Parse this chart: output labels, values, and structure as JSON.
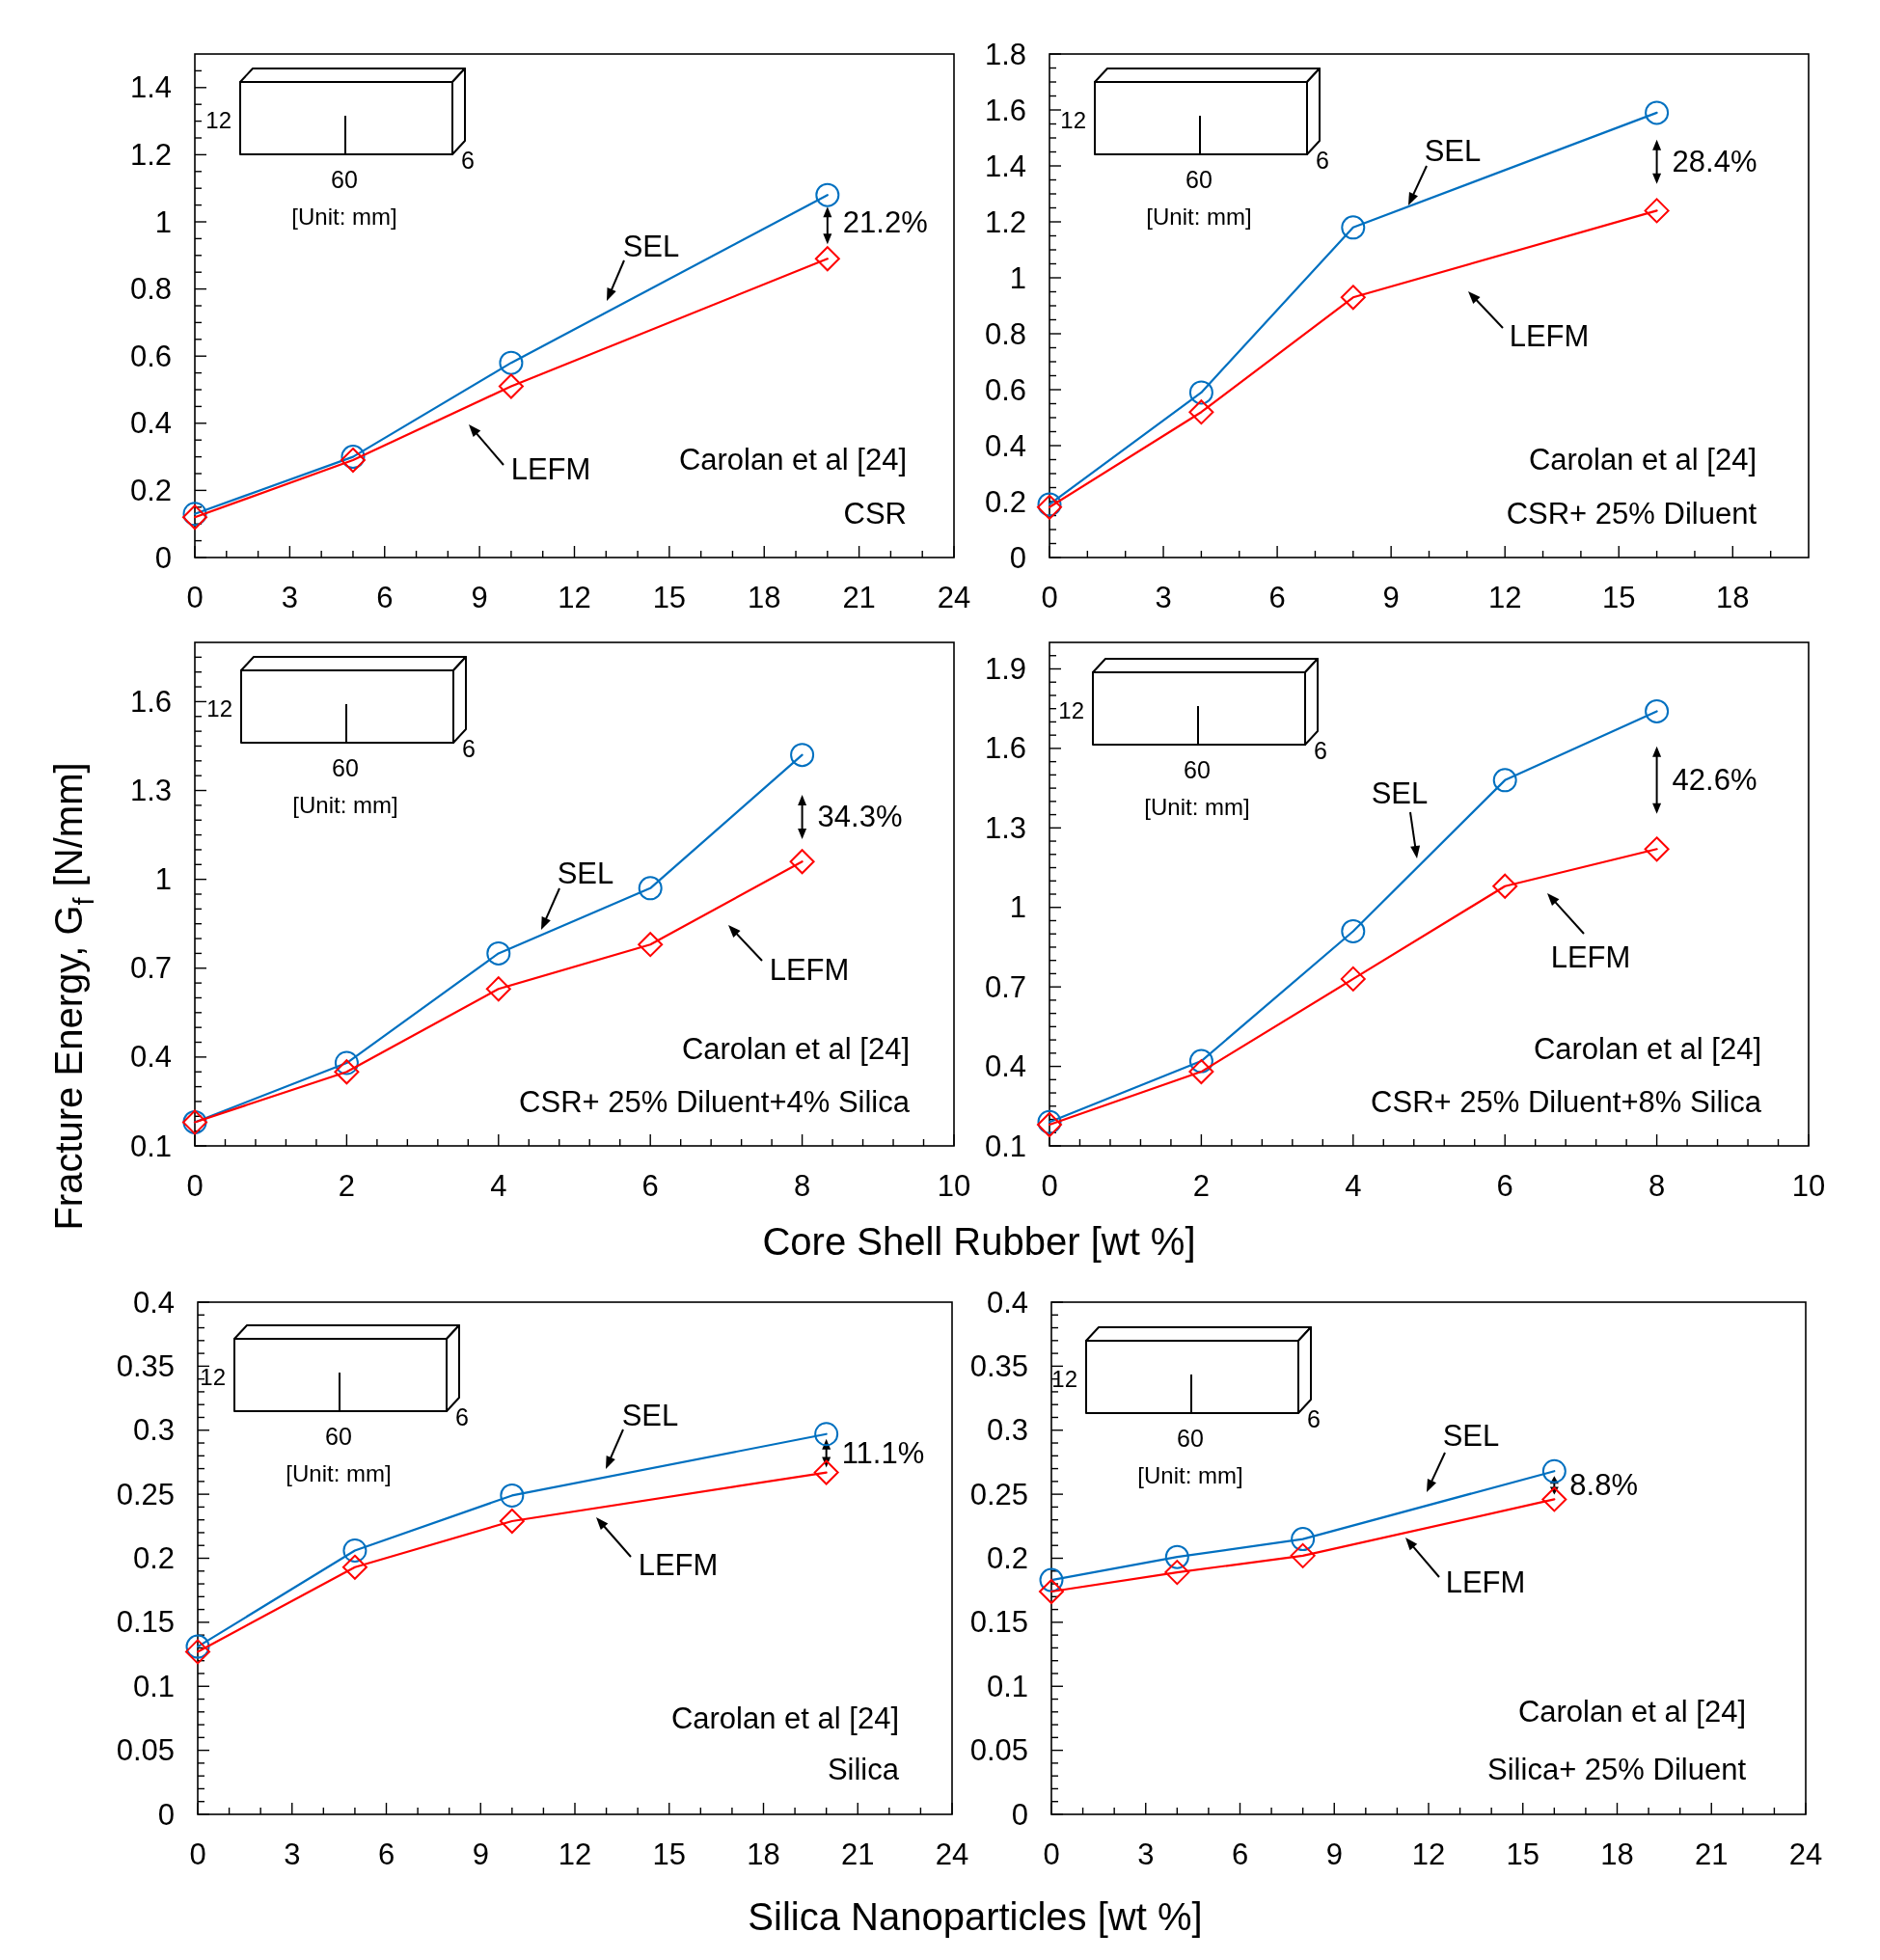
{
  "chart_data": [
    {
      "type": "line",
      "x": [
        0,
        5,
        10,
        20
      ],
      "xlim": [
        0,
        24
      ],
      "ylim": [
        0,
        1.5
      ],
      "xticks": [
        0,
        {
          "value": 1,
          "label": null
        },
        {
          "value": 2,
          "label": null
        },
        3,
        {
          "value": 4,
          "label": null
        },
        {
          "value": 5,
          "label": null
        },
        6,
        {
          "value": 7,
          "label": null
        },
        {
          "value": 8,
          "label": null
        },
        9,
        {
          "value": 10,
          "label": null
        },
        {
          "value": 11,
          "label": null
        },
        12,
        {
          "value": 13,
          "label": null
        },
        {
          "value": 14,
          "label": null
        },
        15,
        {
          "value": 16,
          "label": null
        },
        {
          "value": 17,
          "label": null
        },
        18,
        {
          "value": 19,
          "label": null
        },
        {
          "value": 20,
          "label": null
        },
        21,
        {
          "value": 22,
          "label": null
        },
        {
          "value": 23,
          "label": null
        },
        24
      ],
      "yticks": [
        0,
        {
          "value": 0.05,
          "label": null
        },
        {
          "value": 0.1,
          "label": null
        },
        {
          "value": 0.15,
          "label": null
        },
        0.2,
        {
          "value": 0.25,
          "label": null
        },
        {
          "value": 0.3,
          "label": null
        },
        {
          "value": 0.35,
          "label": null
        },
        0.4,
        {
          "value": 0.45,
          "label": null
        },
        {
          "value": 0.5,
          "label": null
        },
        {
          "value": 0.55,
          "label": null
        },
        0.6,
        {
          "value": 0.65,
          "label": null
        },
        {
          "value": 0.7,
          "label": null
        },
        {
          "value": 0.75,
          "label": null
        },
        0.8,
        {
          "value": 0.85,
          "label": null
        },
        {
          "value": 0.9,
          "label": null
        },
        {
          "value": 0.95,
          "label": null
        },
        1,
        {
          "value": 1.05,
          "label": null
        },
        {
          "value": 1.1,
          "label": null
        },
        {
          "value": 1.15,
          "label": null
        },
        1.2,
        {
          "value": 1.25,
          "label": null
        },
        {
          "value": 1.3,
          "label": null
        },
        {
          "value": 1.35,
          "label": null
        },
        1.4,
        {
          "value": 1.45,
          "label": null
        }
      ],
      "series": [
        {
          "name": "SEL",
          "color": "#0070c0",
          "marker": "circle",
          "values": [
            0.13,
            0.3,
            0.58,
            1.08
          ]
        },
        {
          "name": "LEFM",
          "color": "#ff0000",
          "marker": "diamond",
          "values": [
            0.12,
            0.29,
            0.51,
            0.89
          ]
        }
      ],
      "annotations": [
        "Carolan et al [24]",
        "CSR",
        "21.2%",
        "12",
        "60",
        "6",
        "[Unit: mm]"
      ]
    },
    {
      "type": "line",
      "x": [
        0,
        4,
        8,
        16
      ],
      "xlim": [
        0,
        20
      ],
      "ylim": [
        0,
        1.8
      ],
      "xticks": [
        0,
        {
          "value": 1,
          "label": null
        },
        {
          "value": 2,
          "label": null
        },
        3,
        {
          "value": 4,
          "label": null
        },
        {
          "value": 5,
          "label": null
        },
        6,
        {
          "value": 7,
          "label": null
        },
        {
          "value": 8,
          "label": null
        },
        9,
        {
          "value": 10,
          "label": null
        },
        {
          "value": 11,
          "label": null
        },
        12,
        {
          "value": 13,
          "label": null
        },
        {
          "value": 14,
          "label": null
        },
        15,
        {
          "value": 16,
          "label": null
        },
        {
          "value": 17,
          "label": null
        },
        18,
        {
          "value": 19,
          "label": null
        }
      ],
      "yticks": [
        0,
        {
          "value": 0.05,
          "label": null
        },
        {
          "value": 0.1,
          "label": null
        },
        {
          "value": 0.15,
          "label": null
        },
        0.2,
        {
          "value": 0.25,
          "label": null
        },
        {
          "value": 0.3,
          "label": null
        },
        {
          "value": 0.35,
          "label": null
        },
        0.4,
        {
          "value": 0.45,
          "label": null
        },
        {
          "value": 0.5,
          "label": null
        },
        {
          "value": 0.55,
          "label": null
        },
        0.6,
        {
          "value": 0.65,
          "label": null
        },
        {
          "value": 0.7,
          "label": null
        },
        {
          "value": 0.75,
          "label": null
        },
        0.8,
        {
          "value": 0.85,
          "label": null
        },
        {
          "value": 0.9,
          "label": null
        },
        {
          "value": 0.95,
          "label": null
        },
        1,
        {
          "value": 1.05,
          "label": null
        },
        {
          "value": 1.1,
          "label": null
        },
        {
          "value": 1.15,
          "label": null
        },
        1.2,
        {
          "value": 1.25,
          "label": null
        },
        {
          "value": 1.3,
          "label": null
        },
        {
          "value": 1.35,
          "label": null
        },
        1.4,
        {
          "value": 1.45,
          "label": null
        },
        {
          "value": 1.5,
          "label": null
        },
        {
          "value": 1.55,
          "label": null
        },
        1.6,
        {
          "value": 1.65,
          "label": null
        },
        {
          "value": 1.7,
          "label": null
        },
        {
          "value": 1.75,
          "label": null
        },
        1.8
      ],
      "series": [
        {
          "name": "SEL",
          "color": "#0070c0",
          "marker": "circle",
          "values": [
            0.19,
            0.59,
            1.18,
            1.59
          ]
        },
        {
          "name": "LEFM",
          "color": "#ff0000",
          "marker": "diamond",
          "values": [
            0.18,
            0.52,
            0.93,
            1.24
          ]
        }
      ],
      "annotations": [
        "Carolan et al [24]",
        "CSR+ 25% Diluent",
        "28.4%",
        "12",
        "60",
        "6",
        "[Unit: mm]"
      ]
    },
    {
      "type": "line",
      "x": [
        0,
        2,
        4,
        6,
        8
      ],
      "xlim": [
        0,
        10
      ],
      "ylim": [
        0.1,
        1.8
      ],
      "xlabel": "Core Shell Rubber [wt %]",
      "ylabel": "Fracture Energy, G$_{f}$ [N/mm]",
      "xticks": [
        0,
        {
          "value": 0.4,
          "label": null
        },
        {
          "value": 0.8,
          "label": null
        },
        {
          "value": 1.2,
          "label": null
        },
        {
          "value": 1.6,
          "label": null
        },
        2,
        {
          "value": 2.4,
          "label": null
        },
        {
          "value": 2.8,
          "label": null
        },
        {
          "value": 3.2,
          "label": null
        },
        {
          "value": 3.6,
          "label": null
        },
        4,
        {
          "value": 4.4,
          "label": null
        },
        {
          "value": 4.8,
          "label": null
        },
        {
          "value": 5.2,
          "label": null
        },
        {
          "value": 5.6,
          "label": null
        },
        6,
        {
          "value": 6.4,
          "label": null
        },
        {
          "value": 6.8,
          "label": null
        },
        {
          "value": 7.2,
          "label": null
        },
        {
          "value": 7.6,
          "label": null
        },
        8,
        {
          "value": 8.4,
          "label": null
        },
        {
          "value": 8.8,
          "label": null
        },
        {
          "value": 9.2,
          "label": null
        },
        {
          "value": 9.6,
          "label": null
        },
        10
      ],
      "yticks": [
        0.1,
        {
          "value": 0.15,
          "label": null
        },
        {
          "value": 0.2,
          "label": null
        },
        {
          "value": 0.25,
          "label": null
        },
        {
          "value": 0.3,
          "label": null
        },
        {
          "value": 0.35,
          "label": null
        },
        0.4,
        {
          "value": 0.45,
          "label": null
        },
        {
          "value": 0.5,
          "label": null
        },
        {
          "value": 0.55,
          "label": null
        },
        {
          "value": 0.6,
          "label": null
        },
        {
          "value": 0.65,
          "label": null
        },
        0.7,
        {
          "value": 0.75,
          "label": null
        },
        {
          "value": 0.8,
          "label": null
        },
        {
          "value": 0.85,
          "label": null
        },
        {
          "value": 0.9,
          "label": null
        },
        {
          "value": 0.95,
          "label": null
        },
        1,
        {
          "value": 1.05,
          "label": null
        },
        {
          "value": 1.1,
          "label": null
        },
        {
          "value": 1.15,
          "label": null
        },
        {
          "value": 1.2,
          "label": null
        },
        {
          "value": 1.25,
          "label": null
        },
        1.3,
        {
          "value": 1.35,
          "label": null
        },
        {
          "value": 1.4,
          "label": null
        },
        {
          "value": 1.45,
          "label": null
        },
        {
          "value": 1.5,
          "label": null
        },
        {
          "value": 1.55,
          "label": null
        },
        1.6,
        {
          "value": 1.65,
          "label": null
        },
        {
          "value": 1.7,
          "label": null
        },
        {
          "value": 1.75,
          "label": null
        }
      ],
      "series": [
        {
          "name": "SEL",
          "color": "#0070c0",
          "marker": "circle",
          "values": [
            0.18,
            0.38,
            0.75,
            0.97,
            1.42
          ]
        },
        {
          "name": "LEFM",
          "color": "#ff0000",
          "marker": "diamond",
          "values": [
            0.18,
            0.35,
            0.63,
            0.78,
            1.06
          ]
        }
      ],
      "annotations": [
        "Carolan et al [24]",
        "CSR+ 25% Diluent+4% Silica",
        "34.3%",
        "12",
        "60",
        "6",
        "[Unit: mm]"
      ]
    },
    {
      "type": "line",
      "x": [
        0,
        2,
        4,
        6,
        8
      ],
      "xlim": [
        0,
        10
      ],
      "ylim": [
        0.1,
        2.0
      ],
      "xticks": [
        0,
        {
          "value": 0.4,
          "label": null
        },
        {
          "value": 0.8,
          "label": null
        },
        {
          "value": 1.2,
          "label": null
        },
        {
          "value": 1.6,
          "label": null
        },
        2,
        {
          "value": 2.4,
          "label": null
        },
        {
          "value": 2.8,
          "label": null
        },
        {
          "value": 3.2,
          "label": null
        },
        {
          "value": 3.6,
          "label": null
        },
        4,
        {
          "value": 4.4,
          "label": null
        },
        {
          "value": 4.8,
          "label": null
        },
        {
          "value": 5.2,
          "label": null
        },
        {
          "value": 5.6,
          "label": null
        },
        6,
        {
          "value": 6.4,
          "label": null
        },
        {
          "value": 6.8,
          "label": null
        },
        {
          "value": 7.2,
          "label": null
        },
        {
          "value": 7.6,
          "label": null
        },
        8,
        {
          "value": 8.4,
          "label": null
        },
        {
          "value": 8.8,
          "label": null
        },
        {
          "value": 9.2,
          "label": null
        },
        {
          "value": 9.6,
          "label": null
        },
        10
      ],
      "yticks": [
        0.1,
        {
          "value": 0.15,
          "label": null
        },
        {
          "value": 0.2,
          "label": null
        },
        {
          "value": 0.25,
          "label": null
        },
        {
          "value": 0.3,
          "label": null
        },
        {
          "value": 0.35,
          "label": null
        },
        0.4,
        {
          "value": 0.45,
          "label": null
        },
        {
          "value": 0.5,
          "label": null
        },
        {
          "value": 0.55,
          "label": null
        },
        {
          "value": 0.6,
          "label": null
        },
        {
          "value": 0.65,
          "label": null
        },
        0.7,
        {
          "value": 0.75,
          "label": null
        },
        {
          "value": 0.8,
          "label": null
        },
        {
          "value": 0.85,
          "label": null
        },
        {
          "value": 0.9,
          "label": null
        },
        {
          "value": 0.95,
          "label": null
        },
        1,
        {
          "value": 1.05,
          "label": null
        },
        {
          "value": 1.1,
          "label": null
        },
        {
          "value": 1.15,
          "label": null
        },
        {
          "value": 1.2,
          "label": null
        },
        {
          "value": 1.25,
          "label": null
        },
        1.3,
        {
          "value": 1.35,
          "label": null
        },
        {
          "value": 1.4,
          "label": null
        },
        {
          "value": 1.45,
          "label": null
        },
        {
          "value": 1.5,
          "label": null
        },
        {
          "value": 1.55,
          "label": null
        },
        1.6,
        {
          "value": 1.65,
          "label": null
        },
        {
          "value": 1.7,
          "label": null
        },
        {
          "value": 1.75,
          "label": null
        },
        {
          "value": 1.8,
          "label": null
        },
        {
          "value": 1.85,
          "label": null
        },
        1.9,
        {
          "value": 1.95,
          "label": null
        }
      ],
      "series": [
        {
          "name": "SEL",
          "color": "#0070c0",
          "marker": "circle",
          "values": [
            0.19,
            0.42,
            0.91,
            1.48,
            1.74
          ]
        },
        {
          "name": "LEFM",
          "color": "#ff0000",
          "marker": "diamond",
          "values": [
            0.18,
            0.38,
            0.73,
            1.08,
            1.22
          ]
        }
      ],
      "annotations": [
        "Carolan et al [24]",
        "CSR+ 25% Diluent+8% Silica",
        "42.6%",
        "12",
        "60",
        "6",
        "[Unit: mm]"
      ]
    },
    {
      "type": "line",
      "x": [
        0,
        5,
        10,
        20
      ],
      "xlim": [
        0,
        24
      ],
      "ylim": [
        0,
        0.4
      ],
      "xlabel": "Silica Nanoparticles [wt %]",
      "xticks": [
        0,
        {
          "value": 1,
          "label": null
        },
        {
          "value": 2,
          "label": null
        },
        3,
        {
          "value": 4,
          "label": null
        },
        {
          "value": 5,
          "label": null
        },
        6,
        {
          "value": 7,
          "label": null
        },
        {
          "value": 8,
          "label": null
        },
        9,
        {
          "value": 10,
          "label": null
        },
        {
          "value": 11,
          "label": null
        },
        12,
        {
          "value": 13,
          "label": null
        },
        {
          "value": 14,
          "label": null
        },
        15,
        {
          "value": 16,
          "label": null
        },
        {
          "value": 17,
          "label": null
        },
        18,
        {
          "value": 19,
          "label": null
        },
        {
          "value": 20,
          "label": null
        },
        21,
        {
          "value": 22,
          "label": null
        },
        {
          "value": 23,
          "label": null
        },
        24
      ],
      "yticks": [
        0,
        {
          "value": 0.01,
          "label": null
        },
        {
          "value": 0.02,
          "label": null
        },
        {
          "value": 0.03,
          "label": null
        },
        {
          "value": 0.04,
          "label": null
        },
        0.05,
        {
          "value": 0.06,
          "label": null
        },
        {
          "value": 0.07,
          "label": null
        },
        {
          "value": 0.08,
          "label": null
        },
        {
          "value": 0.09,
          "label": null
        },
        0.1,
        {
          "value": 0.11,
          "label": null
        },
        {
          "value": 0.12,
          "label": null
        },
        {
          "value": 0.13,
          "label": null
        },
        {
          "value": 0.14,
          "label": null
        },
        0.15,
        {
          "value": 0.16,
          "label": null
        },
        {
          "value": 0.17,
          "label": null
        },
        {
          "value": 0.18,
          "label": null
        },
        {
          "value": 0.19,
          "label": null
        },
        0.2,
        {
          "value": 0.21,
          "label": null
        },
        {
          "value": 0.22,
          "label": null
        },
        {
          "value": 0.23,
          "label": null
        },
        {
          "value": 0.24,
          "label": null
        },
        0.25,
        {
          "value": 0.26,
          "label": null
        },
        {
          "value": 0.27,
          "label": null
        },
        {
          "value": 0.28,
          "label": null
        },
        {
          "value": 0.29,
          "label": null
        },
        0.3,
        {
          "value": 0.31,
          "label": null
        },
        {
          "value": 0.32,
          "label": null
        },
        {
          "value": 0.33,
          "label": null
        },
        {
          "value": 0.34,
          "label": null
        },
        0.35,
        {
          "value": 0.36,
          "label": null
        },
        {
          "value": 0.37,
          "label": null
        },
        {
          "value": 0.38,
          "label": null
        },
        {
          "value": 0.39,
          "label": null
        },
        0.4
      ],
      "series": [
        {
          "name": "SEL",
          "color": "#0070c0",
          "marker": "circle",
          "values": [
            0.131,
            0.206,
            0.249,
            0.297
          ]
        },
        {
          "name": "LEFM",
          "color": "#ff0000",
          "marker": "diamond",
          "values": [
            0.127,
            0.193,
            0.229,
            0.267
          ]
        }
      ],
      "annotations": [
        "Carolan et al [24]",
        "Silica",
        "11.1%",
        "12",
        "60",
        "6",
        "[Unit: mm]"
      ]
    },
    {
      "type": "line",
      "x": [
        0,
        4,
        8,
        16
      ],
      "xlim": [
        0,
        24
      ],
      "ylim": [
        0,
        0.4
      ],
      "xticks": [
        0,
        {
          "value": 1,
          "label": null
        },
        {
          "value": 2,
          "label": null
        },
        3,
        {
          "value": 4,
          "label": null
        },
        {
          "value": 5,
          "label": null
        },
        6,
        {
          "value": 7,
          "label": null
        },
        {
          "value": 8,
          "label": null
        },
        9,
        {
          "value": 10,
          "label": null
        },
        {
          "value": 11,
          "label": null
        },
        12,
        {
          "value": 13,
          "label": null
        },
        {
          "value": 14,
          "label": null
        },
        15,
        {
          "value": 16,
          "label": null
        },
        {
          "value": 17,
          "label": null
        },
        18,
        {
          "value": 19,
          "label": null
        },
        {
          "value": 20,
          "label": null
        },
        21,
        {
          "value": 22,
          "label": null
        },
        {
          "value": 23,
          "label": null
        },
        24
      ],
      "yticks": [
        0,
        {
          "value": 0.01,
          "label": null
        },
        {
          "value": 0.02,
          "label": null
        },
        {
          "value": 0.03,
          "label": null
        },
        {
          "value": 0.04,
          "label": null
        },
        0.05,
        {
          "value": 0.06,
          "label": null
        },
        {
          "value": 0.07,
          "label": null
        },
        {
          "value": 0.08,
          "label": null
        },
        {
          "value": 0.09,
          "label": null
        },
        0.1,
        {
          "value": 0.11,
          "label": null
        },
        {
          "value": 0.12,
          "label": null
        },
        {
          "value": 0.13,
          "label": null
        },
        {
          "value": 0.14,
          "label": null
        },
        0.15,
        {
          "value": 0.16,
          "label": null
        },
        {
          "value": 0.17,
          "label": null
        },
        {
          "value": 0.18,
          "label": null
        },
        {
          "value": 0.19,
          "label": null
        },
        0.2,
        {
          "value": 0.21,
          "label": null
        },
        {
          "value": 0.22,
          "label": null
        },
        {
          "value": 0.23,
          "label": null
        },
        {
          "value": 0.24,
          "label": null
        },
        0.25,
        {
          "value": 0.26,
          "label": null
        },
        {
          "value": 0.27,
          "label": null
        },
        {
          "value": 0.28,
          "label": null
        },
        {
          "value": 0.29,
          "label": null
        },
        0.3,
        {
          "value": 0.31,
          "label": null
        },
        {
          "value": 0.32,
          "label": null
        },
        {
          "value": 0.33,
          "label": null
        },
        {
          "value": 0.34,
          "label": null
        },
        0.35,
        {
          "value": 0.36,
          "label": null
        },
        {
          "value": 0.37,
          "label": null
        },
        {
          "value": 0.38,
          "label": null
        },
        {
          "value": 0.39,
          "label": null
        },
        0.4
      ],
      "series": [
        {
          "name": "SEL",
          "color": "#0070c0",
          "marker": "circle",
          "values": [
            0.183,
            0.201,
            0.215,
            0.268
          ]
        },
        {
          "name": "LEFM",
          "color": "#ff0000",
          "marker": "diamond",
          "values": [
            0.174,
            0.189,
            0.202,
            0.246
          ]
        }
      ],
      "annotations": [
        "Carolan et al [24]",
        "Silica+ 25% Diluent",
        "8.8%",
        "12",
        "60",
        "6",
        "[Unit: mm]"
      ]
    }
  ]
}
